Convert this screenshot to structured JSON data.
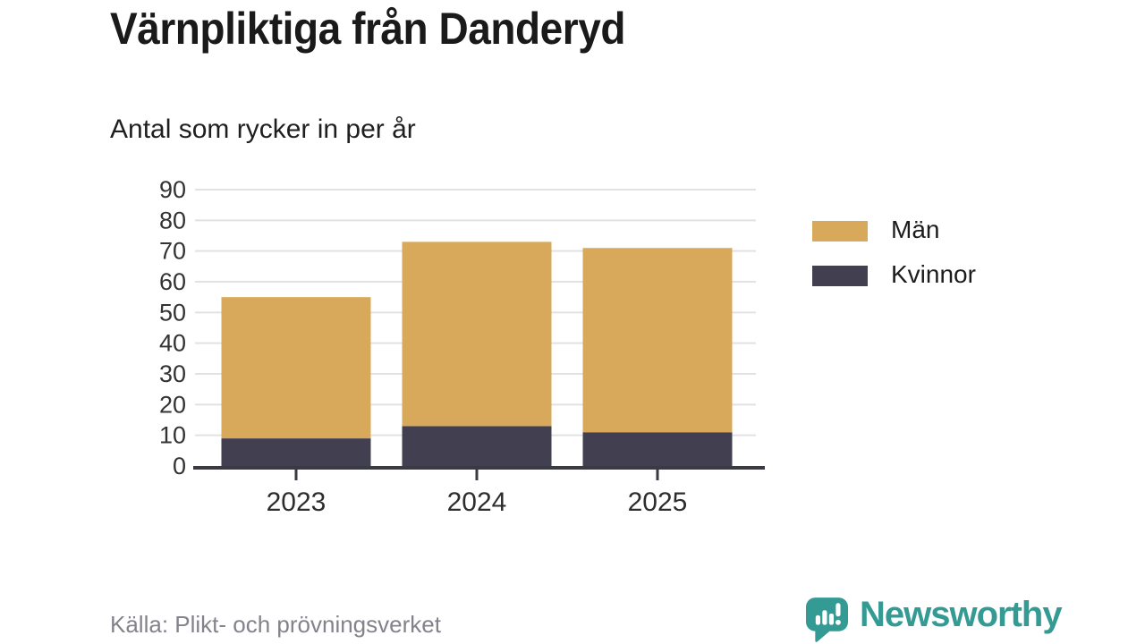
{
  "header": {
    "title": "Värnpliktiga från Danderyd",
    "subtitle": "Antal som rycker in per år"
  },
  "chart_data": {
    "type": "bar",
    "stacked": true,
    "title": "Värnpliktiga från Danderyd",
    "subtitle": "Antal som rycker in per år",
    "categories": [
      "2023",
      "2024",
      "2025"
    ],
    "series": [
      {
        "name": "Kvinnor",
        "color": "#424050",
        "values": [
          9,
          13,
          11
        ]
      },
      {
        "name": "Män",
        "color": "#d9a95b",
        "values": [
          46,
          60,
          60
        ]
      }
    ],
    "stacked_totals": [
      55,
      73,
      71
    ],
    "ylim": [
      0,
      90
    ],
    "ytick_step": 10,
    "ytick_labels": [
      "0",
      "10",
      "20",
      "30",
      "40",
      "50",
      "60",
      "70",
      "80",
      "90"
    ],
    "grid": true,
    "gridline_color": "#e2e2e4",
    "axis_color": "#3a3a42",
    "tick_label_color": "#333333",
    "xtick_label_color": "#2d2d2d",
    "legend_position": "right"
  },
  "legend": {
    "items": [
      {
        "label": "Män",
        "color": "#d9a95b"
      },
      {
        "label": "Kvinnor",
        "color": "#424050"
      }
    ]
  },
  "footer": {
    "source": "Källa: Plikt- och prövningsverket"
  },
  "branding": {
    "name": "Newsworthy",
    "color": "#339a94",
    "logo_icon": "speech-bubble-bar-chart-icon"
  }
}
